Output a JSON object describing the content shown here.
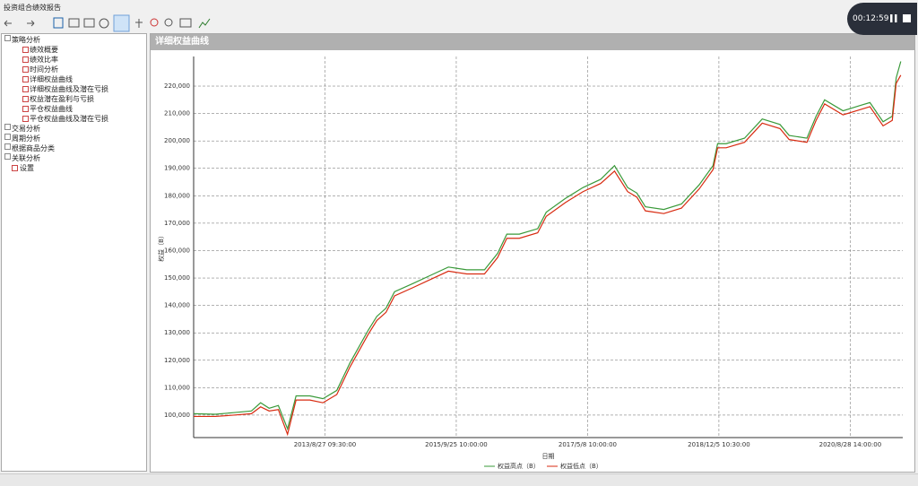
{
  "window": {
    "title": "投资组合绩效报告"
  },
  "tree": [
    {
      "label": "策略分析",
      "expanded": true,
      "children": [
        "绩效概要",
        "绩效比率",
        "时间分析",
        "详细权益曲线",
        "详细权益曲线及潜在亏损",
        "权益潜在盈利与亏损",
        "平仓权益曲线",
        "平仓权益曲线及潜在亏损"
      ]
    },
    {
      "label": "交易分析"
    },
    {
      "label": "周期分析"
    },
    {
      "label": "根据商品分类"
    },
    {
      "label": "关联分析"
    },
    {
      "label": "设置"
    }
  ],
  "recorder": {
    "time": "00:12:59"
  },
  "chart_data": {
    "type": "line",
    "title": "详细权益曲线",
    "xlabel": "日期",
    "ylabel": "权益（B）",
    "x": [
      0,
      3.3,
      6.1,
      8.8,
      10.2,
      11.5,
      12.9,
      14.3,
      15.6,
      17.7,
      19.7,
      21.8,
      23.8,
      26.6,
      27.9,
      29.3,
      30.6,
      33.4,
      36.1,
      38.8,
      41.6,
      44.3,
      46.3,
      47.7,
      49.6,
      52.4,
      53.7,
      56.6,
      59.3,
      62.0,
      64.1,
      66.1,
      67.5,
      68.8,
      71.6,
      74.3,
      77.0,
      79.1,
      79.8,
      81.1,
      83.9,
      86.6,
      89.3,
      90.7,
      93.4,
      94.8,
      96.1,
      98.9,
      101.6,
      103.0,
      105.0,
      106.4,
      107.0,
      107.7
    ],
    "series": [
      {
        "name": "权益高点（B）",
        "color": "#3a9a3a",
        "values": [
          100500,
          100300,
          100900,
          101500,
          104500,
          102500,
          103500,
          95000,
          107000,
          107000,
          106000,
          109000,
          119000,
          131000,
          136000,
          139000,
          145000,
          148000,
          151000,
          154000,
          153000,
          153000,
          159000,
          166000,
          166000,
          168000,
          174000,
          179000,
          183000,
          186000,
          191000,
          183000,
          181000,
          176000,
          175000,
          177000,
          184000,
          191000,
          199000,
          199000,
          201000,
          208000,
          206000,
          202000,
          201000,
          209000,
          215000,
          211000,
          213000,
          214000,
          207000,
          209000,
          223000,
          229000
        ]
      },
      {
        "name": "权益低点（B）",
        "color": "#d82a10",
        "values": [
          99500,
          99500,
          100000,
          100500,
          103000,
          101500,
          102000,
          93000,
          105500,
          105500,
          104500,
          107500,
          117500,
          129500,
          134500,
          137500,
          143500,
          146500,
          149500,
          152500,
          151500,
          151500,
          157500,
          164500,
          164500,
          166500,
          172500,
          177500,
          181500,
          184500,
          189000,
          181500,
          179500,
          174500,
          173500,
          175500,
          182500,
          189500,
          197500,
          197500,
          199500,
          206500,
          204500,
          200500,
          199500,
          207500,
          213500,
          209500,
          211500,
          212500,
          205500,
          207500,
          221000,
          224000
        ]
      }
    ],
    "xlim": [
      0,
      108
    ],
    "xticks": [
      {
        "value": 20,
        "label": "2013/8/27 09:30:00"
      },
      {
        "value": 40,
        "label": "2015/9/25 10:00:00"
      },
      {
        "value": 60,
        "label": "2017/5/8 10:00:00"
      },
      {
        "value": 80,
        "label": "2018/12/5 10:30:00"
      },
      {
        "value": 100,
        "label": "2020/8/28 14:00:00"
      }
    ],
    "ylim": [
      91800,
      230800
    ],
    "yticks": [
      {
        "value": 100000,
        "label": "100,000"
      },
      {
        "value": 110000,
        "label": "110,000"
      },
      {
        "value": 120000,
        "label": "120,000"
      },
      {
        "value": 130000,
        "label": "130,000"
      },
      {
        "value": 140000,
        "label": "140,000"
      },
      {
        "value": 150000,
        "label": "150,000"
      },
      {
        "value": 160000,
        "label": "160,000"
      },
      {
        "value": 170000,
        "label": "170,000"
      },
      {
        "value": 180000,
        "label": "180,000"
      },
      {
        "value": 190000,
        "label": "190,000"
      },
      {
        "value": 200000,
        "label": "200,000"
      },
      {
        "value": 210000,
        "label": "210,000"
      },
      {
        "value": 220000,
        "label": "220,000"
      }
    ],
    "grid": true
  }
}
